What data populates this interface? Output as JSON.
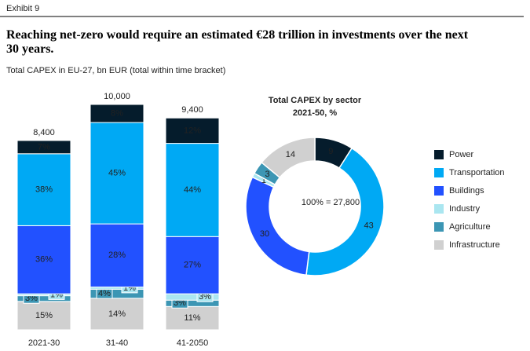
{
  "header": {
    "exhibit": "Exhibit 9",
    "title": "Reaching net-zero would require an estimated €28 trillion in investments over the next 30 years.",
    "subtitle": "Total CAPEX in EU-27, bn EUR (total within time bracket)"
  },
  "chart_data": [
    {
      "type": "stacked-bar",
      "categories": [
        "2021-30",
        "31-40",
        "41-2050"
      ],
      "totals": {
        "values": [
          8400,
          10000,
          9400
        ],
        "value_labels": [
          "8,400",
          "10,000",
          "9,400"
        ]
      },
      "series": [
        {
          "name": "Infrastructure",
          "color": "#d0d0d0",
          "values": [
            15,
            14,
            11
          ],
          "value_labels": [
            "15%",
            "14%",
            "11%"
          ]
        },
        {
          "name": "Agriculture",
          "color": "#3c96b4",
          "values": [
            3,
            4,
            3
          ],
          "value_labels": [
            "3%",
            "4%",
            "3%"
          ]
        },
        {
          "name": "Industry",
          "color": "#aae6f0",
          "values": [
            1,
            1,
            3
          ],
          "value_labels": [
            "1%",
            "1%",
            "3%"
          ]
        },
        {
          "name": "Buildings",
          "color": "#2251ff",
          "values": [
            36,
            28,
            27
          ],
          "value_labels": [
            "36%",
            "28%",
            "27%"
          ]
        },
        {
          "name": "Transportation",
          "color": "#00a9f4",
          "values": [
            38,
            45,
            44
          ],
          "value_labels": [
            "38%",
            "45%",
            "44%"
          ]
        },
        {
          "name": "Power",
          "color": "#051c2c",
          "values": [
            7,
            8,
            12
          ],
          "value_labels": [
            "7%",
            "8%",
            "12%"
          ]
        }
      ]
    },
    {
      "type": "donut",
      "title": "Total CAPEX by sector",
      "subtitle": "2021-50, %",
      "center_label": "100% = 27,800",
      "categories": [
        "Power",
        "Transportation",
        "Buildings",
        "Industry",
        "Agriculture",
        "Infrastructure"
      ],
      "colors": [
        "#051c2c",
        "#00a9f4",
        "#2251ff",
        "#aae6f0",
        "#3c96b4",
        "#d0d0d0"
      ],
      "values": [
        9,
        43,
        30,
        1,
        3,
        14
      ]
    }
  ]
}
